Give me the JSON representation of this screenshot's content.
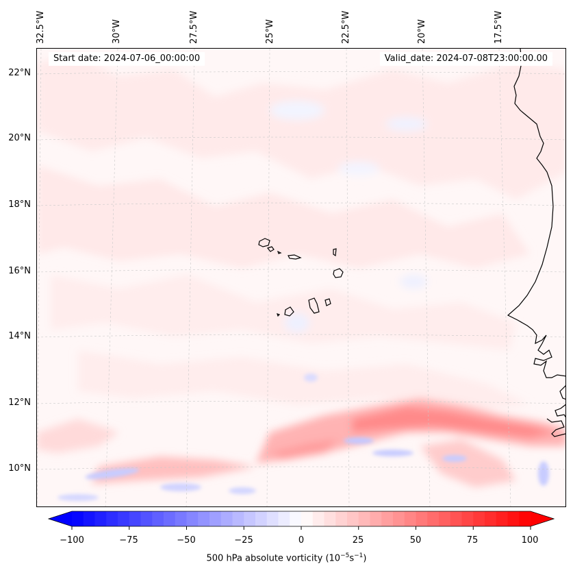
{
  "map": {
    "longitude_labels": [
      "32.5°W",
      "30°W",
      "27.5°W",
      "25°W",
      "22.5°W",
      "20°W",
      "17.5°W"
    ],
    "latitude_labels": [
      "22°N",
      "20°N",
      "18°N",
      "16°N",
      "14°N",
      "12°N",
      "10°N"
    ],
    "start_date": "Start date: 2024-07-06_00:00:00",
    "valid_date": "Valid_date: 2024-07-08T23:00:00.00"
  },
  "colorbar": {
    "tick_labels": [
      "−100",
      "−75",
      "−50",
      "−25",
      "0",
      "25",
      "50",
      "75",
      "100"
    ],
    "min": -100,
    "max": 100,
    "label_prefix": "500 hPa absolute vorticity (10",
    "label_exp1": "−5",
    "label_mid": "s",
    "label_exp2": "−1",
    "label_suffix": ")",
    "colormap": "bwr"
  }
}
